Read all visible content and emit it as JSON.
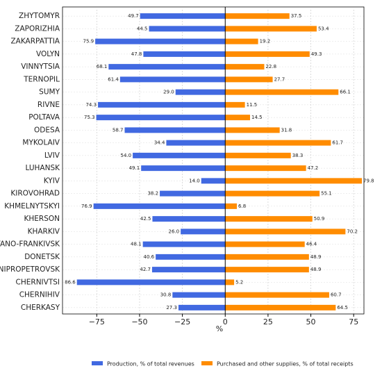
{
  "chart_data": {
    "type": "bar",
    "orientation": "horizontal",
    "x_label": "%",
    "categories": [
      "ZHYTOMYR",
      "ZAPORIZHIA",
      "ZAKARPATTIA",
      "VOLYN",
      "VINNYTSIA",
      "TERNOPIL",
      "SUMY",
      "RIVNE",
      "POLTAVA",
      "ODESA",
      "MYKOLAIV",
      "LVIV",
      "LUHANSK",
      "KYIV",
      "KIROVOHRAD",
      "KHMELNYTSKYI",
      "KHERSON",
      "KHARKIV",
      "IVANO-FRANKIVSK",
      "DONETSK",
      "DNIPROPETROVSK",
      "CHERNIVTSI",
      "CHERNIHIV",
      "CHERKASY"
    ],
    "series": [
      {
        "name": "Production, % of total revenues",
        "color": "#4169e1",
        "values": [
          -49.7,
          -44.5,
          -75.9,
          -47.8,
          -68.1,
          -61.4,
          -29.0,
          -74.3,
          -75.3,
          -58.7,
          -34.4,
          -54.0,
          -49.1,
          -14.0,
          -38.2,
          -76.9,
          -42.5,
          -26.0,
          -48.1,
          -40.6,
          -42.7,
          -86.6,
          -30.8,
          -27.3
        ],
        "value_labels": [
          "49.7",
          "44.5",
          "75.9",
          "47.8",
          "68.1",
          "61.4",
          "29.0",
          "74.3",
          "75.3",
          "58.7",
          "34.4",
          "54.0",
          "49.1",
          "14.0",
          "38.2",
          "76.9",
          "42.5",
          "26.0",
          "48.1",
          "40.6",
          "42.7",
          "86.6",
          "30.8",
          "27.3"
        ]
      },
      {
        "name": "Purchased and other supplies, % of total receipts",
        "color": "#ff8c00",
        "values": [
          37.5,
          53.4,
          19.2,
          49.3,
          22.8,
          27.7,
          66.1,
          11.5,
          14.5,
          31.8,
          61.7,
          38.3,
          47.2,
          79.8,
          55.1,
          6.8,
          50.9,
          70.2,
          46.4,
          48.9,
          48.9,
          5.2,
          60.7,
          64.5
        ]
      }
    ],
    "xlim": [
      -95,
      81
    ],
    "xticks": [
      {
        "value": -75,
        "label": "−75"
      },
      {
        "value": -50,
        "label": "−50"
      },
      {
        "value": -25,
        "label": "−25"
      },
      0,
      25,
      50,
      75
    ],
    "grid": true,
    "legend": "bottom"
  }
}
